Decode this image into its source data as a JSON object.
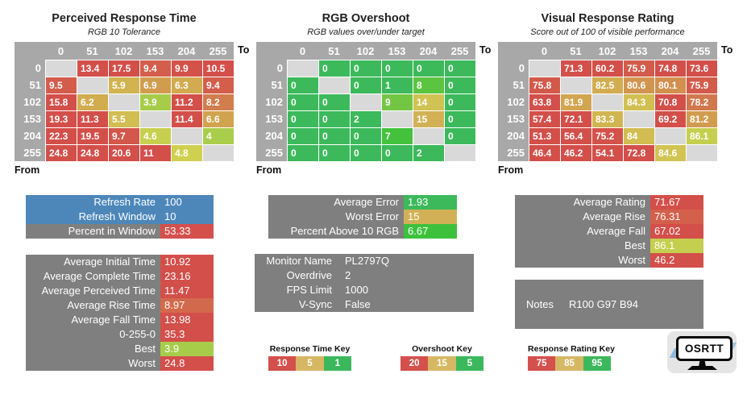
{
  "chart_data": [
    {
      "type": "heatmap",
      "title": "Perceived Response Time",
      "subtitle": "RGB 10 Tolerance",
      "axis_to": "To",
      "axis_from": "From",
      "scale": "time",
      "columns": [
        "0",
        "51",
        "102",
        "153",
        "204",
        "255"
      ],
      "rows": [
        "0",
        "51",
        "102",
        "153",
        "204",
        "255"
      ],
      "values": [
        [
          null,
          13.4,
          17.5,
          9.4,
          9.9,
          10.5
        ],
        [
          9.5,
          null,
          5.9,
          6.9,
          6.3,
          9.4
        ],
        [
          15.8,
          6.2,
          null,
          3.9,
          11.2,
          8.2
        ],
        [
          19.3,
          11.3,
          5.5,
          null,
          11.4,
          6.6
        ],
        [
          22.3,
          19.5,
          9.7,
          4.6,
          null,
          4
        ],
        [
          24.8,
          24.8,
          20.6,
          11,
          4.8,
          null
        ]
      ]
    },
    {
      "type": "heatmap",
      "title": "RGB Overshoot",
      "subtitle": "RGB values over/under target",
      "axis_to": "To",
      "axis_from": "From",
      "scale": "overshoot",
      "columns": [
        "0",
        "51",
        "102",
        "153",
        "204",
        "255"
      ],
      "rows": [
        "0",
        "51",
        "102",
        "153",
        "204",
        "255"
      ],
      "values": [
        [
          null,
          0,
          0,
          0,
          0,
          0
        ],
        [
          0,
          null,
          0,
          1,
          8,
          0
        ],
        [
          0,
          0,
          null,
          9,
          14,
          0
        ],
        [
          0,
          0,
          2,
          null,
          15,
          0
        ],
        [
          0,
          0,
          0,
          7,
          null,
          0
        ],
        [
          0,
          0,
          0,
          0,
          2,
          null
        ]
      ]
    },
    {
      "type": "heatmap",
      "title": "Visual Response Rating",
      "subtitle": "Score out of 100 of visible performance",
      "axis_to": "To",
      "axis_from": "From",
      "scale": "rating",
      "columns": [
        "0",
        "51",
        "102",
        "153",
        "204",
        "255"
      ],
      "rows": [
        "0",
        "51",
        "102",
        "153",
        "204",
        "255"
      ],
      "values": [
        [
          null,
          71.3,
          60.2,
          75.9,
          74.8,
          73.6
        ],
        [
          75.8,
          null,
          82.5,
          80.6,
          80.1,
          75.9
        ],
        [
          63.8,
          81.9,
          null,
          84.3,
          70.8,
          78.2
        ],
        [
          57.4,
          72.1,
          83.3,
          null,
          69.2,
          81.2
        ],
        [
          51.3,
          56.4,
          75.2,
          84,
          null,
          86.1
        ],
        [
          46.4,
          46.2,
          54.1,
          72.8,
          84.6,
          null
        ]
      ]
    }
  ],
  "panels": [
    {
      "id": "refresh",
      "rows": [
        {
          "label": "Refresh Rate",
          "value": 100,
          "color": "blue",
          "row_fill": true
        },
        {
          "label": "Refresh Window",
          "value": 10,
          "color": "blue",
          "row_fill": true
        },
        {
          "label": "Percent in Window",
          "value": 53.33,
          "color": "red"
        }
      ]
    },
    {
      "id": "times",
      "scale": "time",
      "rows": [
        {
          "label": "Average Initial Time",
          "value": 10.92
        },
        {
          "label": "Average Complete Time",
          "value": 23.16
        },
        {
          "label": "Average Perceived Time",
          "value": 11.47
        },
        {
          "label": "Average Rise Time",
          "value": 8.97
        },
        {
          "label": "Average Fall Time",
          "value": 13.98
        },
        {
          "label": "0-255-0",
          "value": 35.3
        },
        {
          "label": "Best",
          "value": 3.9
        },
        {
          "label": "Worst",
          "value": 24.8
        }
      ]
    },
    {
      "id": "error",
      "scale": "overshoot",
      "rows": [
        {
          "label": "Average Error",
          "value": 1.93
        },
        {
          "label": "Worst Error",
          "value": 15
        },
        {
          "label": "Percent Above 10 RGB",
          "value": 6.67
        }
      ]
    },
    {
      "id": "monitor",
      "rows": [
        {
          "label": "Monitor Name",
          "value": "PL2797Q",
          "color": "none"
        },
        {
          "label": "Overdrive",
          "value": 2,
          "color": "none"
        },
        {
          "label": "FPS Limit",
          "value": 1000,
          "color": "none"
        },
        {
          "label": "V-Sync",
          "value": "False",
          "color": "none"
        }
      ]
    },
    {
      "id": "rating",
      "scale": "rating",
      "rows": [
        {
          "label": "Average Rating",
          "value": 71.67
        },
        {
          "label": "Average Rise",
          "value": 76.31
        },
        {
          "label": "Average Fall",
          "value": 67.02
        },
        {
          "label": "Best",
          "value": 86.1
        },
        {
          "label": "Worst",
          "value": 46.2
        }
      ]
    },
    {
      "id": "notes",
      "rows": [
        {
          "label": "Notes",
          "value": "R100 G97 B94",
          "color": "none"
        }
      ]
    }
  ],
  "keys": [
    {
      "title": "Response Time Key",
      "values": [
        10,
        5,
        1
      ]
    },
    {
      "title": "Overshoot Key",
      "values": [
        20,
        15,
        5
      ]
    },
    {
      "title": "Response Rating Key",
      "values": [
        75,
        85,
        95
      ]
    }
  ],
  "logo": {
    "text": "OSRTT"
  },
  "colors": {
    "named": {
      "red": "#d4504c",
      "tan": "#d6b763",
      "green": "#3cb85c",
      "blue": "#4d87ba",
      "none": "transparent"
    },
    "panel_bg": "#7f7f7f",
    "header_bg": "#a8a8a8",
    "diagonal_bg": "#d9d9d9",
    "key_order": [
      "red",
      "tan",
      "green"
    ],
    "scales": {
      "time": [
        [
          1,
          135,
          51,
          48
        ],
        [
          5,
          56,
          58,
          57
        ],
        [
          10,
          2,
          61,
          56
        ]
      ],
      "overshoot": [
        [
          5,
          135,
          51,
          48
        ],
        [
          15,
          44,
          58,
          58
        ],
        [
          20,
          2,
          61,
          56
        ]
      ],
      "rating": [
        [
          75,
          2,
          61,
          56
        ],
        [
          85,
          56,
          58,
          57
        ],
        [
          95,
          135,
          51,
          48
        ]
      ]
    }
  }
}
